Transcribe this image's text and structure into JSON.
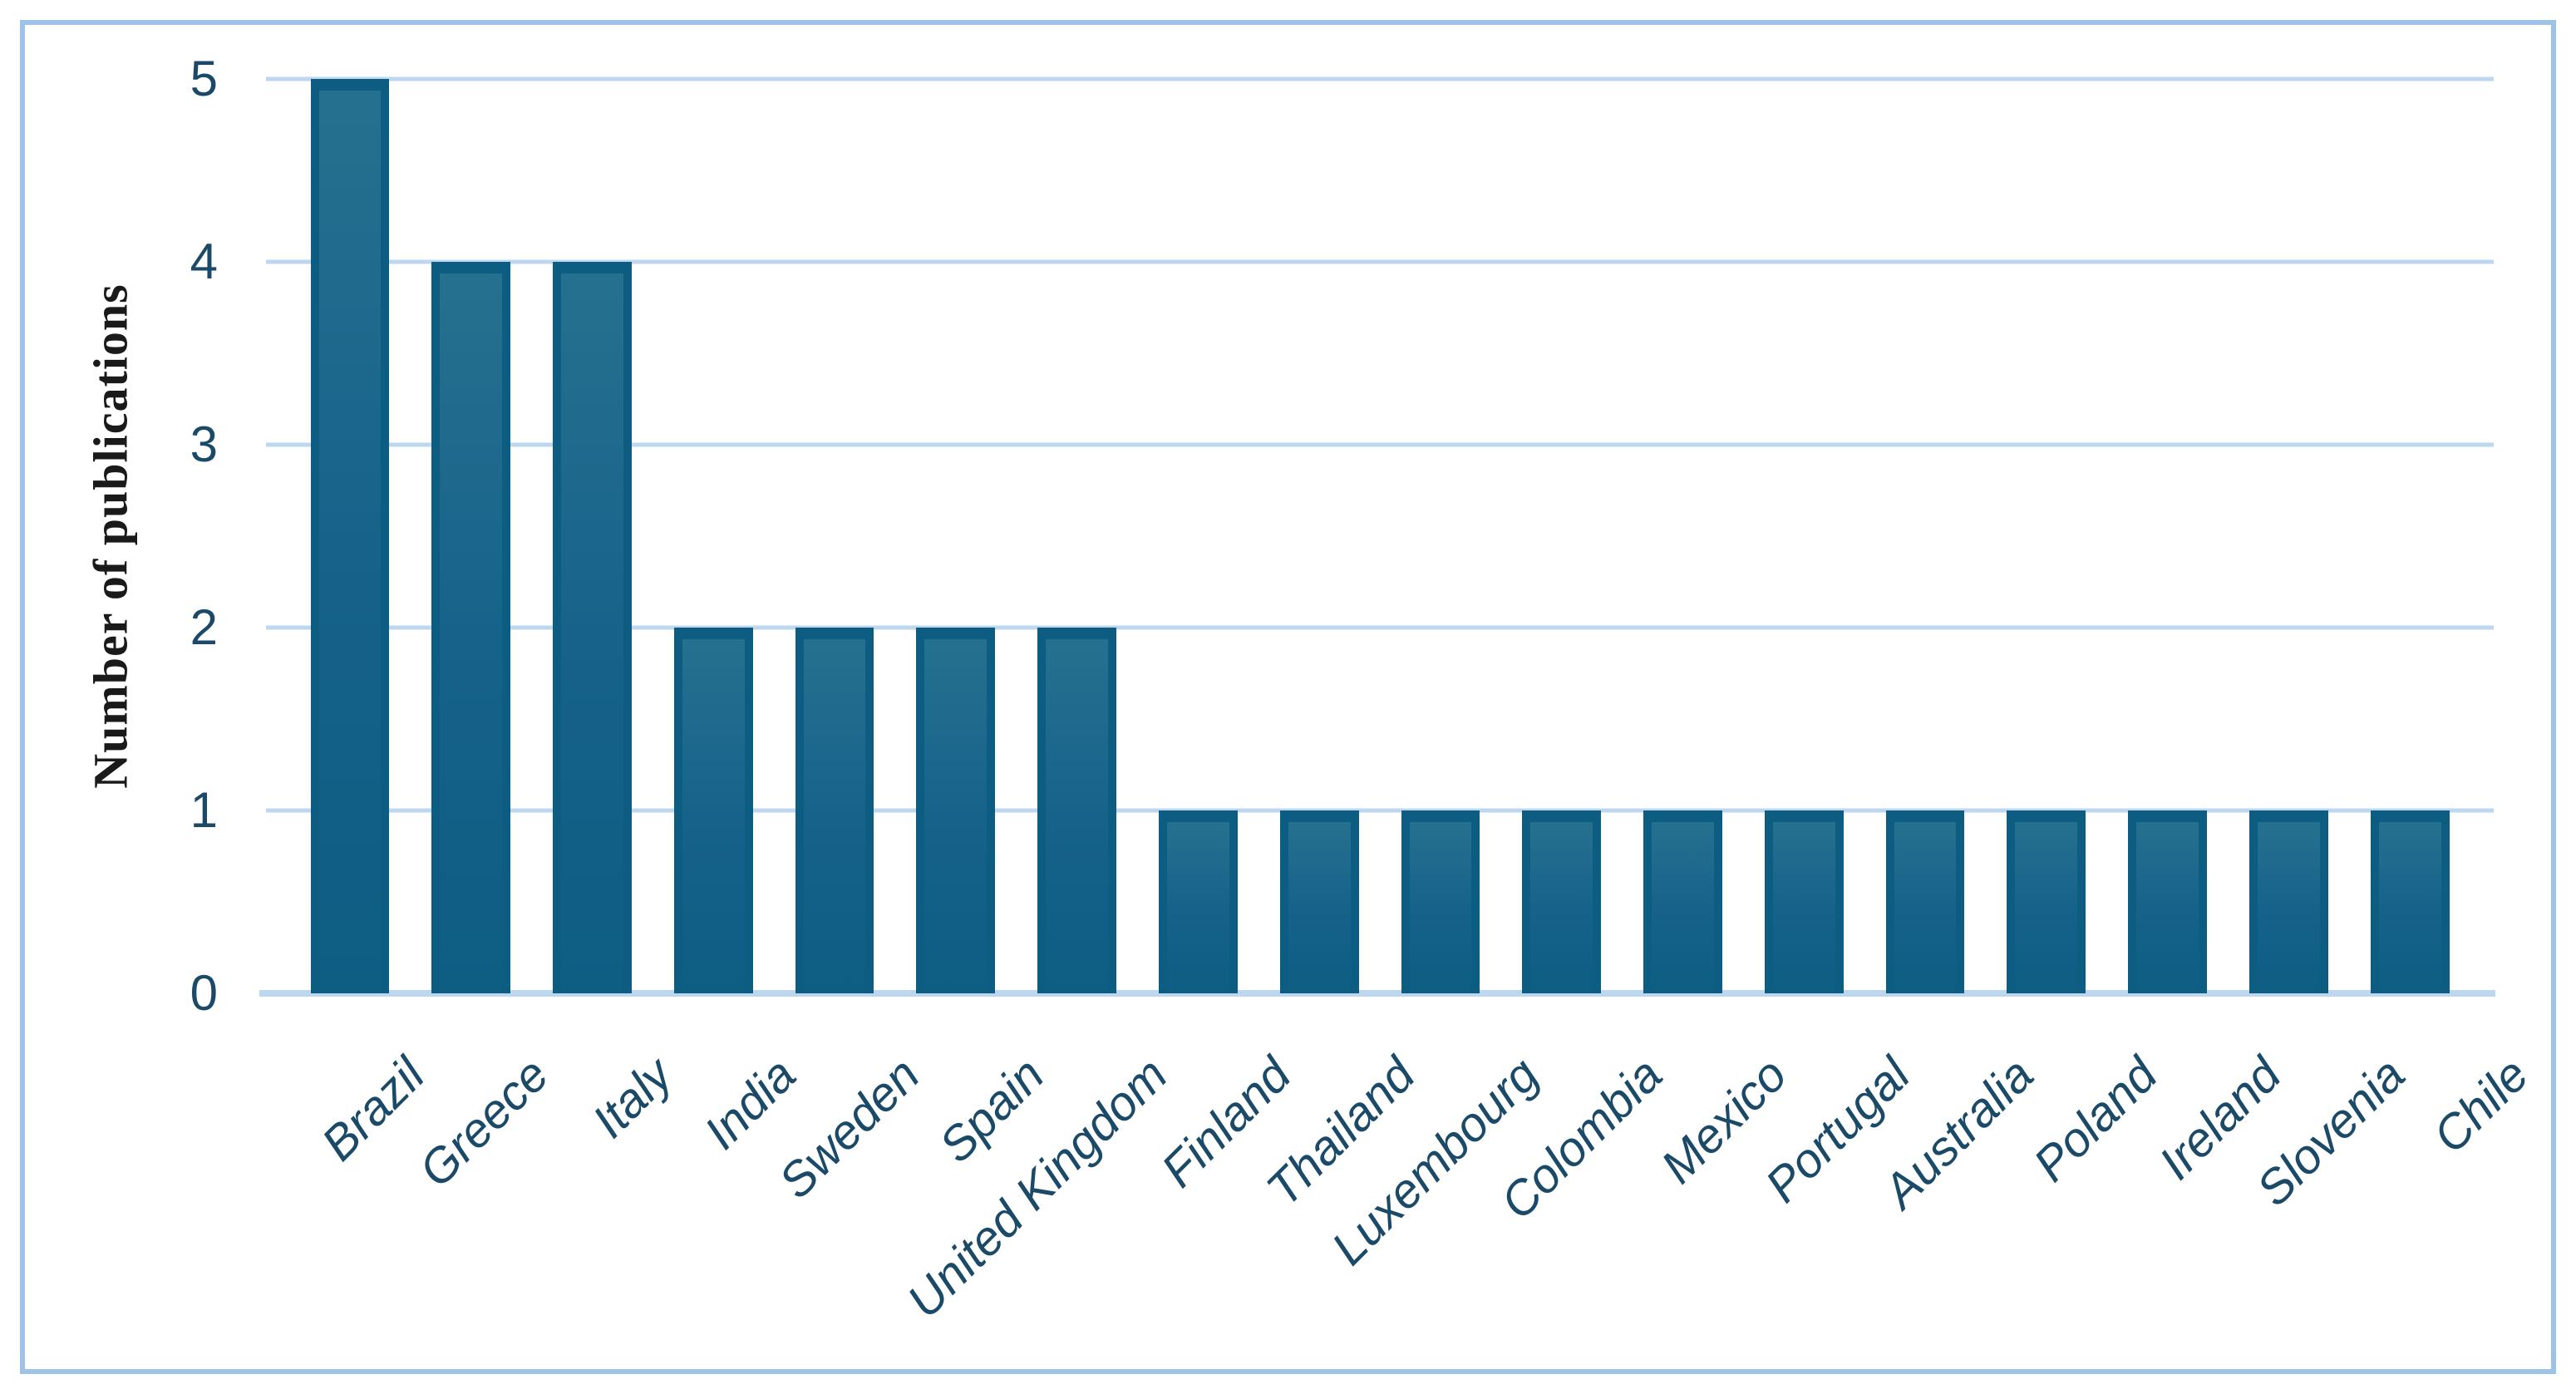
{
  "chart_data": {
    "type": "bar",
    "categories": [
      "Brazil",
      "Greece",
      "Italy",
      "India",
      "Sweden",
      "Spain",
      "United Kingdom",
      "Finland",
      "Thailand",
      "Luxembourg",
      "Colombia",
      "Mexico",
      "Portugal",
      "Australia",
      "Poland",
      "Ireland",
      "Slovenia",
      "Chile"
    ],
    "values": [
      5,
      4,
      4,
      2,
      2,
      2,
      2,
      1,
      1,
      1,
      1,
      1,
      1,
      1,
      1,
      1,
      1,
      1
    ],
    "title": "",
    "xlabel": "",
    "ylabel": "Number of publications",
    "ylim": [
      0,
      5
    ],
    "yticks": [
      0,
      1,
      2,
      3,
      4,
      5
    ],
    "grid": true,
    "legend": "none",
    "colors": {
      "bar_rim": "#0D5C81",
      "bar_fill_top": "#26708F",
      "bar_fill_mid": "#15618A",
      "bar_fill_bottom": "#0E5D83",
      "gridline": "#BDD7EE",
      "frame_border": "#9DC3E6",
      "tick_text": "#1B4A68",
      "category_text": "#1B4A68",
      "axis_title_text": "#1A1A1A"
    }
  }
}
